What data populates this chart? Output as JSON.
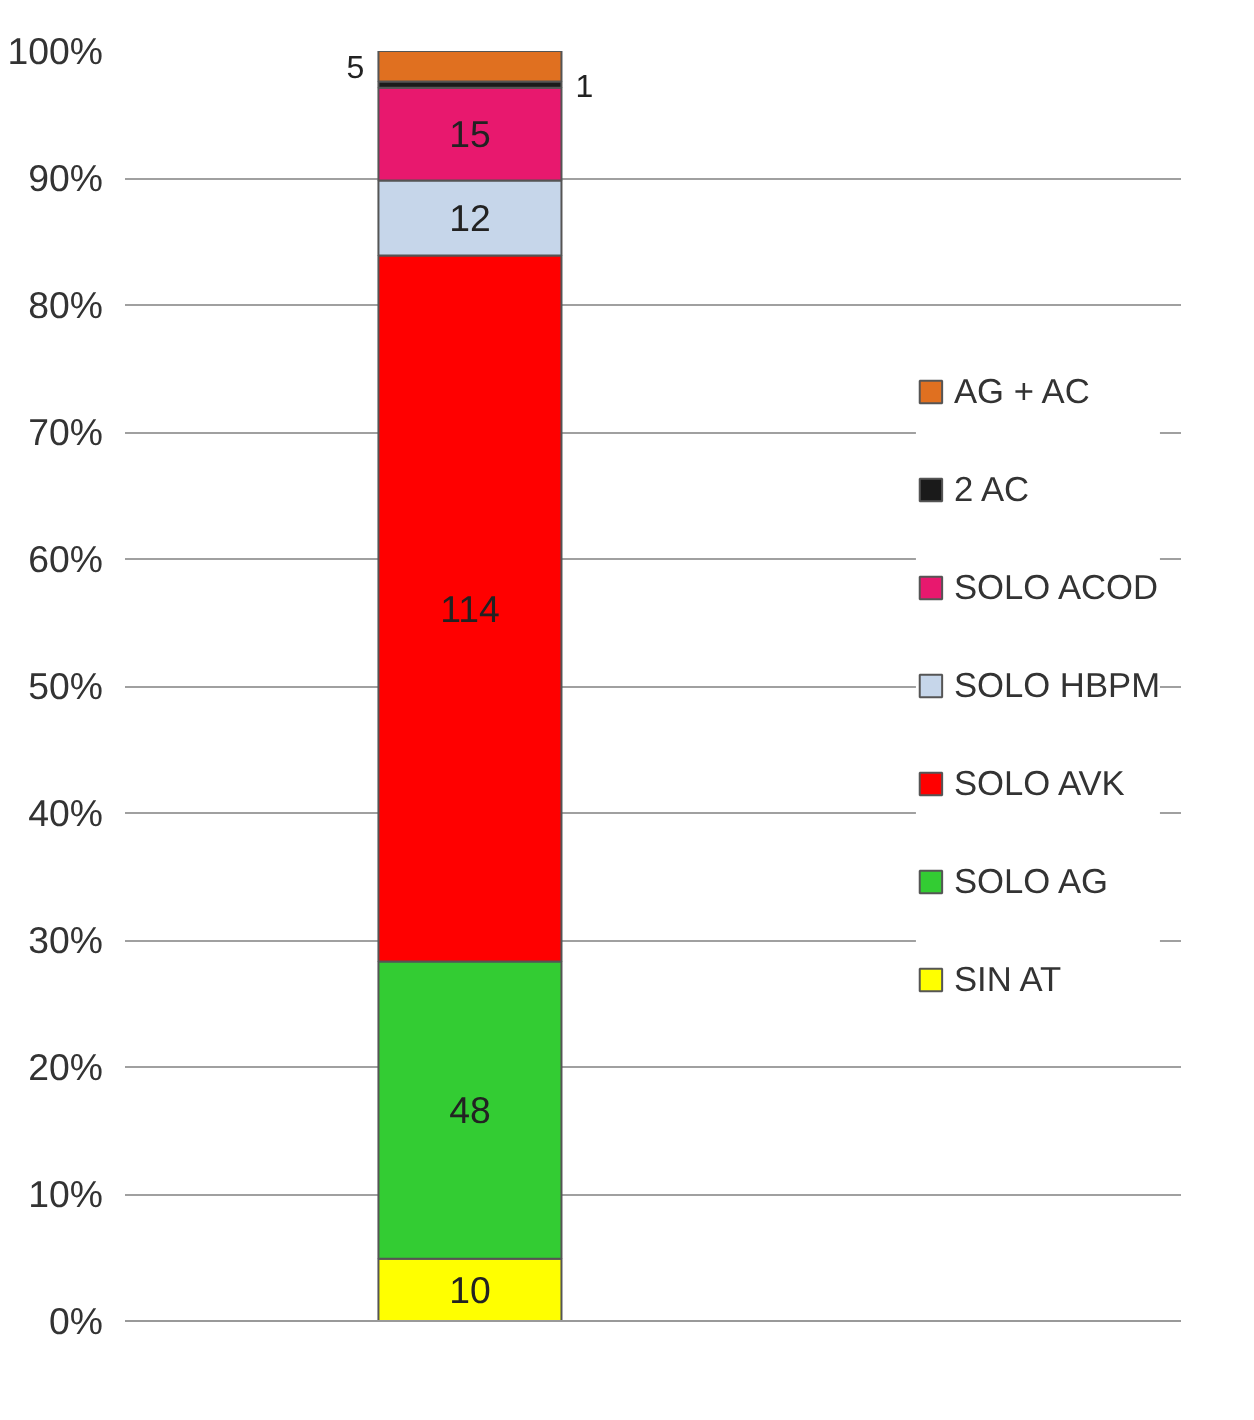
{
  "chart_data": {
    "type": "bar",
    "stacked": true,
    "categories": [
      null
    ],
    "series": [
      {
        "name": "SIN AT",
        "color": "#ffff00",
        "values": [
          4.9
        ]
      },
      {
        "name": "SOLO AG",
        "color": "#33cc33",
        "values": [
          23.4
        ]
      },
      {
        "name": "SOLO AVK",
        "color": "#ff0000",
        "values": [
          55.6
        ]
      },
      {
        "name": "SOLO HBPM",
        "color": "#c6d6ea",
        "values": [
          5.9
        ]
      },
      {
        "name": "SOLO ACOD",
        "color": "#e8186e",
        "values": [
          7.3
        ]
      },
      {
        "name": "2 AC",
        "color": "#1a1a1a",
        "values": [
          0.5
        ]
      },
      {
        "name": "AG + AC",
        "color": "#e07020",
        "values": [
          2.4
        ]
      }
    ],
    "annotations": [
      "10",
      "48",
      "114",
      "12",
      "15",
      "1",
      "5"
    ],
    "ylim": [
      0,
      100
    ],
    "yticks": [
      {
        "value": 0,
        "label": "0%"
      },
      {
        "value": 10,
        "label": "10%"
      },
      {
        "value": 20,
        "label": "20%"
      },
      {
        "value": 30,
        "label": "30%"
      },
      {
        "value": 40,
        "label": "40%"
      },
      {
        "value": 50,
        "label": "50%"
      },
      {
        "value": 60,
        "label": "60%"
      },
      {
        "value": 70,
        "label": "70%"
      },
      {
        "value": 80,
        "label": "80%"
      },
      {
        "value": 90,
        "label": "90%"
      },
      {
        "value": 100,
        "label": "100%"
      }
    ],
    "grid": "y",
    "legend": "right",
    "tick_labels": "y"
  }
}
